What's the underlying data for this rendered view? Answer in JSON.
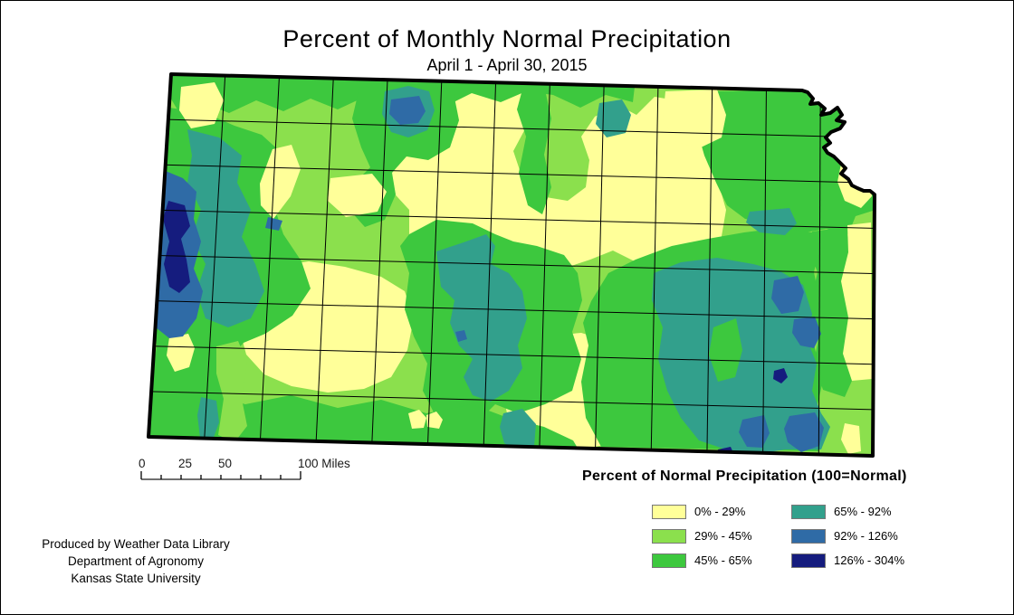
{
  "title": "Percent of Monthly Normal Precipitation",
  "subtitle": "April 1 - April 30, 2015",
  "legend": {
    "title": "Percent of Normal Precipitation (100=Normal)",
    "items": [
      {
        "label": "0% - 29%",
        "color": "#FFFF99"
      },
      {
        "label": "29% - 45%",
        "color": "#8BE04D"
      },
      {
        "label": "45% - 65%",
        "color": "#3DC83E"
      },
      {
        "label": "65% - 92%",
        "color": "#32A08C"
      },
      {
        "label": "92% - 126%",
        "color": "#2F6BA6"
      },
      {
        "label": "126% - 304%",
        "color": "#151C7E"
      }
    ]
  },
  "scalebar": {
    "labels": [
      "0",
      "25",
      "50",
      "100 Miles"
    ]
  },
  "credits": {
    "line1": "Produced by Weather Data Library",
    "line2": "Department of Agronomy",
    "line3": "Kansas State University"
  },
  "palette": {
    "yellow": "#FFFF99",
    "lightgreen": "#8BE04D",
    "green": "#3DC83E",
    "teal": "#32A08C",
    "blue": "#2F6BA6",
    "navy": "#151C7E",
    "outline": "#000000"
  }
}
